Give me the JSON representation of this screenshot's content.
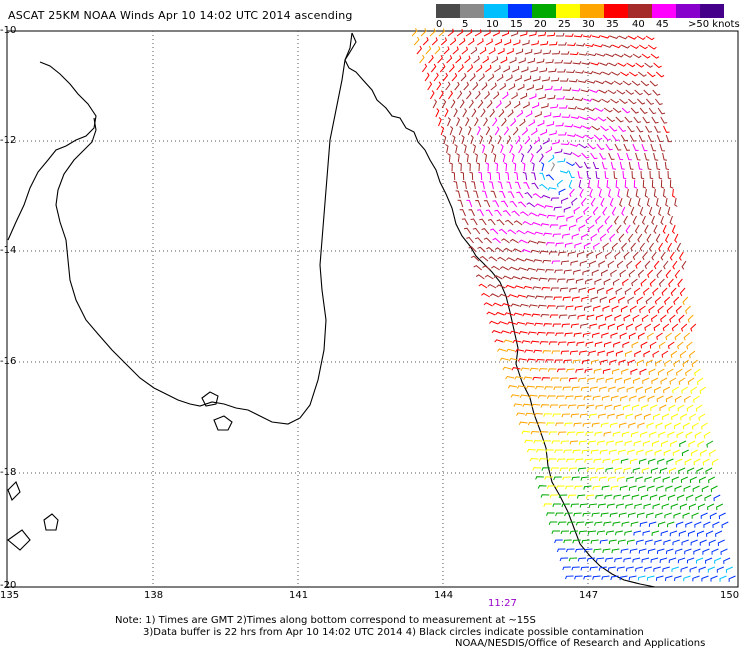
{
  "title": "ASCAT 25KM NOAA Winds Apr 10 14:02 UTC 2014 ascending",
  "legend": {
    "labels": [
      "0",
      "5",
      "10",
      "15",
      "20",
      "25",
      "30",
      "35",
      "40",
      "45",
      ">50 knots"
    ],
    "colors": [
      "#4a4a4a",
      "#8a8a8a",
      "#00bfff",
      "#0033ff",
      "#00aa00",
      "#ffff00",
      "#ffa500",
      "#ff0000",
      "#a52a2a",
      "#ff00ff",
      "#8800cc",
      "#440088"
    ]
  },
  "map": {
    "lat_labels": [
      "-10",
      "-12",
      "-14",
      "-16",
      "-18",
      "-20"
    ],
    "lon_labels": [
      "135",
      "138",
      "141",
      "144",
      "147",
      "150"
    ],
    "time_marker": "11:27",
    "storm_center": {
      "lon": 146.4,
      "lat": -12.6
    }
  },
  "notes": {
    "line1": "Note: 1) Times are GMT 2)Times along bottom correspond to measurement at ~15S",
    "line2": "3)Data buffer is 22 hrs from Apr 10 14:02 UTC 2014 4) Black circles indicate possible contamination",
    "credit": "NOAA/NESDIS/Office of Research and Applications"
  }
}
